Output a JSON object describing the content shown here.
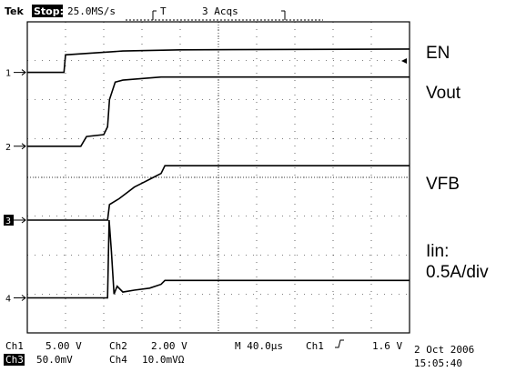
{
  "header": {
    "brand": "Tek",
    "status": "Stop:",
    "rate": "25.0MS/s",
    "trigger_marker": "T",
    "acqs": "3 Acqs"
  },
  "footer": {
    "row1": [
      {
        "text": "Ch1",
        "x": 0
      },
      {
        "text": "5.00 V",
        "x": 0
      },
      {
        "text": "Ch2",
        "x": 0
      },
      {
        "text": "2.00 V",
        "x": 0
      },
      {
        "text": "M 40.0µs",
        "x": 0
      },
      {
        "text": "Ch1",
        "x": 0
      },
      {
        "text": "1.6 V",
        "x": 0
      }
    ],
    "row2": [
      {
        "text": "Ch3",
        "x": 0
      },
      {
        "text": "50.0mV",
        "x": 0
      },
      {
        "text": "Ch4",
        "x": 0
      },
      {
        "text": "10.0mVΩ",
        "x": 0
      }
    ],
    "date": "2 Oct 2006",
    "time": "15:05:40"
  },
  "chart_data": {
    "type": "line",
    "x_unit": "div",
    "x_range": [
      0,
      10
    ],
    "y_unit": "div",
    "y_range": [
      0,
      8
    ],
    "grid": true,
    "series": [
      {
        "name": "EN",
        "channel": "1",
        "color": "#000000",
        "x": [
          0,
          0.96,
          1.0,
          2.5,
          4.0,
          10
        ],
        "y": [
          6.7,
          6.7,
          7.15,
          7.25,
          7.28,
          7.3
        ]
      },
      {
        "name": "Vout",
        "channel": "2",
        "color": "#000000",
        "x": [
          0,
          1.4,
          1.55,
          2.0,
          2.1,
          2.15,
          2.3,
          2.5,
          3.5,
          10
        ],
        "y": [
          4.8,
          4.8,
          5.05,
          5.1,
          5.3,
          6.0,
          6.45,
          6.5,
          6.58,
          6.58
        ]
      },
      {
        "name": "VFB",
        "channel": "3",
        "color": "#000000",
        "x": [
          0,
          2.1,
          2.15,
          2.4,
          2.6,
          2.8,
          3.0,
          3.3,
          3.5,
          3.6,
          10
        ],
        "y": [
          2.9,
          2.9,
          3.3,
          3.45,
          3.6,
          3.75,
          3.85,
          4.0,
          4.1,
          4.3,
          4.3
        ]
      },
      {
        "name": "Iin: 0.5A/div",
        "channel": "4",
        "color": "#000000",
        "x": [
          0,
          2.1,
          2.14,
          2.2,
          2.27,
          2.35,
          2.5,
          2.8,
          3.2,
          3.5,
          3.6,
          10
        ],
        "y": [
          0.9,
          0.9,
          2.9,
          2.1,
          1.0,
          1.2,
          1.05,
          1.1,
          1.15,
          1.25,
          1.35,
          1.35
        ]
      }
    ],
    "ground_markers": [
      {
        "label": "1",
        "y": 6.7
      },
      {
        "label": "2",
        "y": 4.8
      },
      {
        "label": "3",
        "y": 2.9
      },
      {
        "label": "4",
        "y": 0.9
      }
    ],
    "trace_labels": [
      "EN",
      "Vout",
      "VFB",
      "Iin:",
      "0.5A/div"
    ]
  }
}
